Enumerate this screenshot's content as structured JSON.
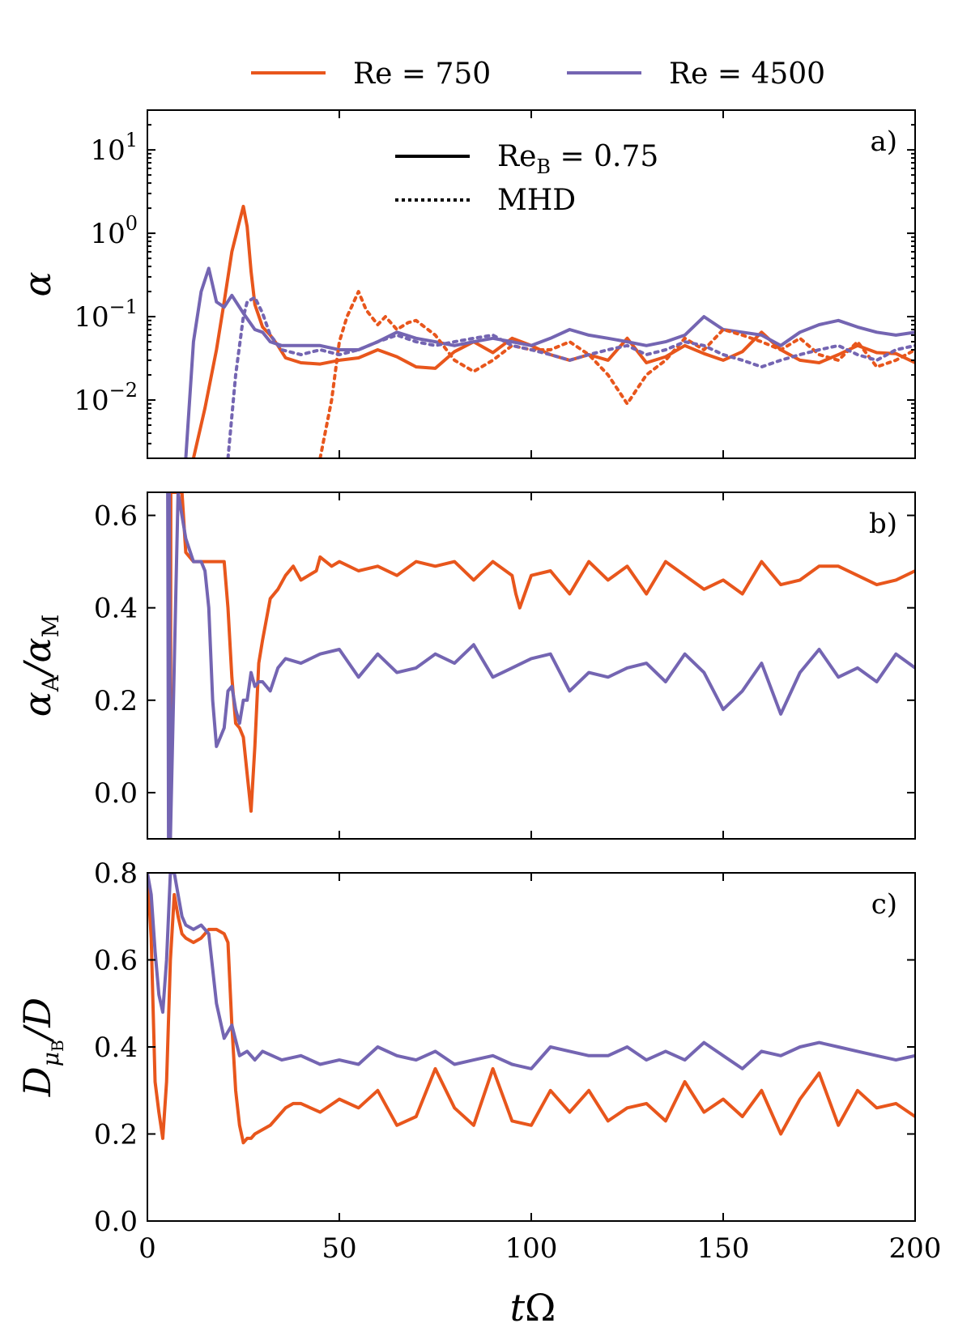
{
  "legend": {
    "series": [
      {
        "key": "re750",
        "label": "Re = 750",
        "color": "#E8561C"
      },
      {
        "key": "re4500",
        "label": "Re = 4500",
        "color": "#7465B2"
      }
    ],
    "styles": [
      {
        "key": "solid",
        "label": "Re_B = 0.75",
        "label_main": "Re",
        "label_sub": "B",
        "label_rest": " = 0.75"
      },
      {
        "key": "dotted",
        "label": "MHD"
      }
    ]
  },
  "xaxis": {
    "label": "tΩ",
    "label_main": "t",
    "label_sym": "Ω",
    "range": [
      0,
      200
    ],
    "ticks": [
      0,
      50,
      100,
      150,
      200
    ],
    "tick_labels": [
      "0",
      "50",
      "100",
      "150",
      "200"
    ]
  },
  "chart_data": [
    {
      "type": "line",
      "panel": "a)",
      "ylabel": "α",
      "yscale": "log",
      "ylim": [
        0.002,
        30
      ],
      "yticks": [
        0.01,
        0.1,
        1,
        10
      ],
      "ytick_labels": [
        {
          "base": "10",
          "exp": "−2"
        },
        {
          "base": "10",
          "exp": "−1"
        },
        {
          "base": "10",
          "exp": "0"
        },
        {
          "base": "10",
          "exp": "1"
        }
      ],
      "series": [
        {
          "name": "Re = 750, Re_B = 0.75",
          "color": "#E8561C",
          "style": "solid",
          "x": [
            12,
            15,
            18,
            20,
            22,
            24,
            25,
            26,
            27,
            28,
            30,
            32,
            34,
            36,
            40,
            45,
            50,
            55,
            60,
            65,
            70,
            75,
            80,
            85,
            90,
            95,
            100,
            105,
            110,
            115,
            120,
            125,
            130,
            135,
            140,
            145,
            150,
            155,
            160,
            165,
            170,
            175,
            180,
            185,
            190,
            195,
            200
          ],
          "y": [
            0.002,
            0.008,
            0.04,
            0.15,
            0.6,
            1.4,
            2.1,
            1.2,
            0.35,
            0.14,
            0.075,
            0.06,
            0.045,
            0.032,
            0.028,
            0.027,
            0.03,
            0.032,
            0.04,
            0.033,
            0.025,
            0.024,
            0.038,
            0.05,
            0.037,
            0.055,
            0.045,
            0.035,
            0.03,
            0.035,
            0.03,
            0.055,
            0.028,
            0.033,
            0.045,
            0.036,
            0.03,
            0.038,
            0.065,
            0.04,
            0.03,
            0.028,
            0.035,
            0.045,
            0.037,
            0.036,
            0.028
          ]
        },
        {
          "name": "Re = 4500, Re_B = 0.75",
          "color": "#7465B2",
          "style": "solid",
          "x": [
            10,
            12,
            14,
            16,
            18,
            20,
            22,
            25,
            28,
            30,
            32,
            35,
            40,
            45,
            50,
            55,
            60,
            65,
            70,
            75,
            80,
            85,
            90,
            95,
            100,
            105,
            110,
            115,
            120,
            125,
            130,
            135,
            140,
            145,
            150,
            155,
            160,
            165,
            170,
            175,
            180,
            185,
            190,
            195,
            200
          ],
          "y": [
            0.002,
            0.05,
            0.2,
            0.38,
            0.15,
            0.13,
            0.18,
            0.11,
            0.07,
            0.065,
            0.05,
            0.045,
            0.045,
            0.045,
            0.04,
            0.04,
            0.05,
            0.065,
            0.055,
            0.05,
            0.045,
            0.05,
            0.055,
            0.05,
            0.045,
            0.055,
            0.07,
            0.06,
            0.055,
            0.05,
            0.045,
            0.05,
            0.06,
            0.1,
            0.07,
            0.065,
            0.06,
            0.045,
            0.065,
            0.08,
            0.09,
            0.075,
            0.065,
            0.06,
            0.065
          ]
        },
        {
          "name": "Re = 750, MHD",
          "color": "#E8561C",
          "style": "dotted",
          "x": [
            45,
            48,
            50,
            52,
            55,
            57,
            60,
            62,
            65,
            68,
            70,
            75,
            80,
            85,
            90,
            95,
            100,
            105,
            110,
            115,
            120,
            125,
            130,
            135,
            140,
            145,
            150,
            155,
            160,
            165,
            170,
            175,
            180,
            185,
            190,
            195,
            200
          ],
          "y": [
            0.002,
            0.01,
            0.05,
            0.1,
            0.2,
            0.12,
            0.08,
            0.1,
            0.07,
            0.085,
            0.09,
            0.06,
            0.03,
            0.022,
            0.03,
            0.045,
            0.04,
            0.04,
            0.05,
            0.035,
            0.02,
            0.009,
            0.02,
            0.03,
            0.055,
            0.04,
            0.07,
            0.06,
            0.05,
            0.04,
            0.055,
            0.035,
            0.03,
            0.05,
            0.025,
            0.03,
            0.04
          ]
        },
        {
          "name": "Re = 4500, MHD",
          "color": "#7465B2",
          "style": "dotted",
          "x": [
            21,
            23,
            25,
            26,
            28,
            30,
            32,
            35,
            40,
            45,
            50,
            55,
            60,
            65,
            70,
            75,
            80,
            85,
            90,
            95,
            100,
            105,
            110,
            115,
            120,
            125,
            130,
            135,
            140,
            145,
            150,
            155,
            160,
            165,
            170,
            175,
            180,
            185,
            190,
            195,
            200
          ],
          "y": [
            0.002,
            0.02,
            0.1,
            0.15,
            0.17,
            0.11,
            0.06,
            0.04,
            0.035,
            0.04,
            0.035,
            0.04,
            0.05,
            0.06,
            0.05,
            0.045,
            0.05,
            0.055,
            0.06,
            0.045,
            0.04,
            0.035,
            0.03,
            0.035,
            0.04,
            0.045,
            0.035,
            0.04,
            0.05,
            0.045,
            0.035,
            0.03,
            0.025,
            0.03,
            0.035,
            0.04,
            0.045,
            0.035,
            0.03,
            0.04,
            0.045
          ]
        }
      ]
    },
    {
      "type": "line",
      "panel": "b)",
      "ylabel": "α_A/α_M",
      "yscale": "linear",
      "ylim": [
        -0.1,
        0.65
      ],
      "yticks": [
        0.0,
        0.2,
        0.4,
        0.6
      ],
      "ytick_labels": [
        "0.0",
        "0.2",
        "0.4",
        "0.6"
      ],
      "series": [
        {
          "name": "Re = 750",
          "color": "#E8561C",
          "style": "solid",
          "x": [
            5.8,
            5.9,
            6.0,
            6.1,
            8,
            9,
            10,
            11,
            12,
            14,
            16,
            18,
            20,
            21,
            22,
            23,
            24,
            25,
            26,
            27,
            28,
            29,
            30,
            32,
            34,
            36,
            38,
            40,
            42,
            44,
            45,
            48,
            50,
            55,
            60,
            65,
            70,
            75,
            80,
            85,
            90,
            95,
            96,
            97,
            100,
            105,
            110,
            115,
            120,
            125,
            130,
            135,
            140,
            145,
            150,
            155,
            160,
            165,
            170,
            175,
            180,
            185,
            190,
            195,
            200
          ],
          "y": [
            -0.1,
            0.65,
            -0.1,
            0.65,
            0.65,
            0.65,
            0.52,
            0.51,
            0.5,
            0.5,
            0.5,
            0.5,
            0.5,
            0.4,
            0.25,
            0.15,
            0.14,
            0.12,
            0.04,
            -0.04,
            0.1,
            0.28,
            0.33,
            0.42,
            0.44,
            0.47,
            0.49,
            0.46,
            0.47,
            0.48,
            0.51,
            0.49,
            0.5,
            0.48,
            0.49,
            0.47,
            0.5,
            0.49,
            0.5,
            0.46,
            0.5,
            0.47,
            0.43,
            0.4,
            0.47,
            0.48,
            0.43,
            0.5,
            0.46,
            0.49,
            0.43,
            0.5,
            0.47,
            0.44,
            0.46,
            0.43,
            0.5,
            0.45,
            0.46,
            0.49,
            0.49,
            0.47,
            0.45,
            0.46,
            0.48
          ]
        },
        {
          "name": "Re = 4500",
          "color": "#7465B2",
          "style": "solid",
          "x": [
            5.3,
            5.5,
            5.7,
            6.0,
            8,
            10,
            12,
            14,
            15,
            16,
            17,
            18,
            19,
            20,
            21,
            22,
            23,
            24,
            25,
            26,
            27,
            28,
            29,
            30,
            32,
            34,
            36,
            40,
            45,
            50,
            55,
            60,
            65,
            70,
            75,
            80,
            85,
            90,
            95,
            100,
            105,
            110,
            115,
            120,
            125,
            130,
            135,
            140,
            145,
            150,
            155,
            160,
            165,
            170,
            175,
            180,
            185,
            190,
            195,
            200
          ],
          "y": [
            0.65,
            -0.1,
            0.65,
            -0.1,
            0.65,
            0.55,
            0.5,
            0.5,
            0.48,
            0.4,
            0.2,
            0.1,
            0.12,
            0.14,
            0.22,
            0.23,
            0.18,
            0.15,
            0.2,
            0.2,
            0.26,
            0.23,
            0.24,
            0.24,
            0.22,
            0.27,
            0.29,
            0.28,
            0.3,
            0.31,
            0.25,
            0.3,
            0.26,
            0.27,
            0.3,
            0.28,
            0.32,
            0.25,
            0.27,
            0.29,
            0.3,
            0.22,
            0.26,
            0.25,
            0.27,
            0.28,
            0.24,
            0.3,
            0.26,
            0.18,
            0.22,
            0.28,
            0.17,
            0.26,
            0.31,
            0.25,
            0.27,
            0.24,
            0.3,
            0.27
          ]
        }
      ]
    },
    {
      "type": "line",
      "panel": "c)",
      "ylabel": "D_μB/D",
      "yscale": "linear",
      "ylim": [
        0.0,
        0.8
      ],
      "yticks": [
        0.0,
        0.2,
        0.4,
        0.6,
        0.8
      ],
      "ytick_labels": [
        "0.0",
        "0.2",
        "0.4",
        "0.6",
        "0.8"
      ],
      "series": [
        {
          "name": "Re = 750",
          "color": "#E8561C",
          "style": "solid",
          "x": [
            0,
            1,
            2,
            3,
            4,
            5,
            6,
            7,
            8,
            9,
            10,
            12,
            14,
            16,
            18,
            20,
            21,
            22,
            23,
            24,
            25,
            26,
            27,
            28,
            30,
            32,
            34,
            36,
            38,
            40,
            45,
            50,
            55,
            60,
            65,
            70,
            75,
            80,
            85,
            90,
            95,
            100,
            105,
            110,
            115,
            120,
            125,
            130,
            135,
            140,
            145,
            150,
            155,
            160,
            165,
            170,
            175,
            180,
            185,
            190,
            195,
            200
          ],
          "y": [
            0.8,
            0.65,
            0.32,
            0.25,
            0.19,
            0.32,
            0.6,
            0.75,
            0.7,
            0.66,
            0.65,
            0.64,
            0.65,
            0.67,
            0.67,
            0.66,
            0.64,
            0.45,
            0.3,
            0.22,
            0.18,
            0.19,
            0.19,
            0.2,
            0.21,
            0.22,
            0.24,
            0.26,
            0.27,
            0.27,
            0.25,
            0.28,
            0.26,
            0.3,
            0.22,
            0.24,
            0.35,
            0.26,
            0.22,
            0.35,
            0.23,
            0.22,
            0.3,
            0.25,
            0.3,
            0.23,
            0.26,
            0.27,
            0.23,
            0.32,
            0.25,
            0.28,
            0.24,
            0.3,
            0.2,
            0.28,
            0.34,
            0.22,
            0.3,
            0.26,
            0.27,
            0.24
          ]
        },
        {
          "name": "Re = 4500",
          "color": "#7465B2",
          "style": "solid",
          "x": [
            0,
            1,
            2,
            3,
            4,
            5,
            6,
            7,
            8,
            9,
            10,
            12,
            14,
            16,
            18,
            20,
            22,
            24,
            26,
            28,
            30,
            35,
            40,
            45,
            50,
            55,
            60,
            65,
            70,
            75,
            80,
            85,
            90,
            95,
            100,
            105,
            110,
            115,
            120,
            125,
            130,
            135,
            140,
            145,
            150,
            155,
            160,
            165,
            170,
            175,
            180,
            185,
            190,
            195,
            200
          ],
          "y": [
            0.8,
            0.75,
            0.62,
            0.52,
            0.48,
            0.6,
            0.8,
            0.8,
            0.75,
            0.7,
            0.68,
            0.67,
            0.68,
            0.66,
            0.5,
            0.42,
            0.45,
            0.38,
            0.39,
            0.37,
            0.39,
            0.37,
            0.38,
            0.36,
            0.37,
            0.36,
            0.4,
            0.38,
            0.37,
            0.39,
            0.36,
            0.37,
            0.38,
            0.36,
            0.35,
            0.4,
            0.39,
            0.38,
            0.38,
            0.4,
            0.37,
            0.39,
            0.37,
            0.41,
            0.38,
            0.35,
            0.39,
            0.38,
            0.4,
            0.41,
            0.4,
            0.39,
            0.38,
            0.37,
            0.38
          ]
        }
      ]
    }
  ]
}
